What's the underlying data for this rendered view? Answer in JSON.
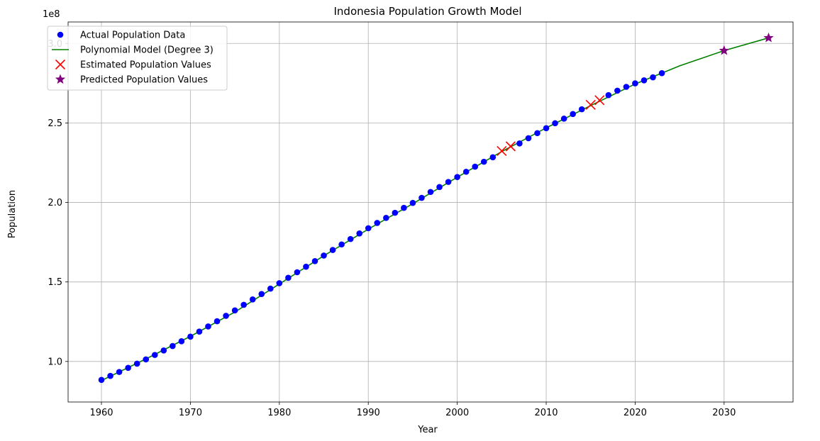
{
  "chart_data": {
    "type": "scatter",
    "title": "Indonesia Population Growth Model",
    "xlabel": "Year",
    "ylabel": "Population",
    "y_offset_label": "1e8",
    "xlim": [
      1956.25,
      2037.75
    ],
    "ylim": [
      74500000,
      313500000
    ],
    "x_ticks": [
      1960,
      1970,
      1980,
      1990,
      2000,
      2010,
      2020,
      2030
    ],
    "y_ticks": [
      100000000,
      150000000,
      200000000,
      250000000,
      300000000
    ],
    "y_tick_labels": [
      "1.0",
      "1.5",
      "2.0",
      "2.5",
      "3.0"
    ],
    "grid": true,
    "legend_position": "top-left",
    "colors": {
      "actual": "#0000ff",
      "model": "#008000",
      "estimated": "#ff0000",
      "predicted": "#800080",
      "grid": "#b0b0b0",
      "legend_border": "#cccccc"
    },
    "series": [
      {
        "name": "Actual Population Data",
        "kind": "scatter",
        "marker": "circle",
        "x": [
          1960,
          1961,
          1962,
          1963,
          1964,
          1965,
          1966,
          1967,
          1968,
          1969,
          1970,
          1971,
          1972,
          1973,
          1974,
          1975,
          1976,
          1977,
          1978,
          1979,
          1980,
          1981,
          1982,
          1983,
          1984,
          1985,
          1986,
          1987,
          1988,
          1989,
          1990,
          1991,
          1992,
          1993,
          1994,
          1995,
          1996,
          1997,
          1998,
          1999,
          2000,
          2001,
          2002,
          2003,
          2004,
          2007,
          2008,
          2009,
          2010,
          2011,
          2012,
          2013,
          2014,
          2017,
          2018,
          2019,
          2020,
          2021,
          2022,
          2023
        ],
        "y": [
          88400000,
          90900000,
          93400000,
          96000000,
          98600000,
          101300000,
          104100000,
          106900000,
          109700000,
          112700000,
          115600000,
          118800000,
          122000000,
          125300000,
          128700000,
          132100000,
          135600000,
          139000000,
          142400000,
          145800000,
          149200000,
          152600000,
          156100000,
          159600000,
          163100000,
          166600000,
          170100000,
          173600000,
          177000000,
          180500000,
          183800000,
          187100000,
          190300000,
          193500000,
          196600000,
          199700000,
          202900000,
          206600000,
          209700000,
          212900000,
          216000000,
          219300000,
          222500000,
          225600000,
          228400000,
          237100000,
          240400000,
          243600000,
          246700000,
          249800000,
          252700000,
          255600000,
          258600000,
          267500000,
          270300000,
          272700000,
          274900000,
          276800000,
          278700000,
          281300000
        ]
      },
      {
        "name": "Polynomial Model (Degree 3)",
        "kind": "line",
        "x": [
          1960,
          1965,
          1970,
          1975,
          1980,
          1985,
          1990,
          1995,
          2000,
          2005,
          2010,
          2015,
          2020,
          2025,
          2030,
          2035
        ],
        "y": [
          88000000,
          101600000,
          115800000,
          131100000,
          148700000,
          166500000,
          183200000,
          199200000,
          215900000,
          232000000,
          246900000,
          260900000,
          274500000,
          285900000,
          295500000,
          303500000
        ]
      },
      {
        "name": "Estimated Population Values",
        "kind": "scatter",
        "marker": "x",
        "x": [
          2005,
          2006,
          2015,
          2016
        ],
        "y": [
          232400000,
          235300000,
          261400000,
          264300000
        ]
      },
      {
        "name": "Predicted Population Values",
        "kind": "scatter",
        "marker": "star",
        "x": [
          2030,
          2035
        ],
        "y": [
          295500000,
          303500000
        ]
      }
    ]
  }
}
